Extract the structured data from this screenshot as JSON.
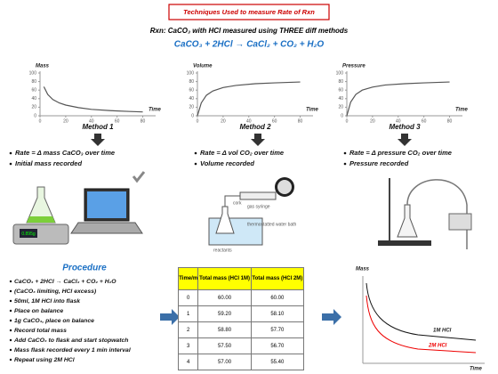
{
  "header": {
    "title": "Techniques Used to measure Rate of Rxn",
    "reaction": "Rxn: CaCO₃ with HCl measured using THREE diff methods",
    "equation": "CaCO₃ + 2HCl → CaCl₂ + CO₂ + H₂O"
  },
  "graphs": [
    {
      "type": "line",
      "ylabel": "Mass",
      "xlabel": "Time",
      "caption": "Method 1",
      "x": [
        3,
        6,
        10,
        15,
        20,
        30,
        40,
        55,
        70,
        80
      ],
      "values": [
        68,
        50,
        38,
        30,
        25,
        19,
        15,
        12,
        10,
        9
      ],
      "xlim": [
        0,
        90
      ],
      "ylim": [
        0,
        100
      ],
      "xticks": [
        0,
        20,
        40,
        60,
        80
      ],
      "yticks": [
        0,
        20,
        40,
        60,
        80,
        100
      ],
      "color": "#555555"
    },
    {
      "type": "line",
      "ylabel": "Volume",
      "xlabel": "Time",
      "caption": "Method 2",
      "x": [
        0,
        3,
        7,
        12,
        20,
        30,
        45,
        60,
        80
      ],
      "values": [
        0,
        30,
        48,
        58,
        66,
        71,
        75,
        77,
        79
      ],
      "xlim": [
        0,
        90
      ],
      "ylim": [
        0,
        100
      ],
      "xticks": [
        0,
        20,
        40,
        60,
        80
      ],
      "yticks": [
        0,
        20,
        40,
        60,
        80,
        100
      ],
      "color": "#555555"
    },
    {
      "type": "line",
      "ylabel": "Pressure",
      "xlabel": "Time",
      "caption": "Method 3",
      "x": [
        0,
        3,
        7,
        12,
        20,
        30,
        45,
        60,
        80
      ],
      "values": [
        0,
        32,
        50,
        60,
        67,
        72,
        75,
        77,
        79
      ],
      "xlim": [
        0,
        90
      ],
      "ylim": [
        0,
        100
      ],
      "xticks": [
        0,
        20,
        40,
        60,
        80
      ],
      "yticks": [
        0,
        20,
        40,
        60,
        80,
        100
      ],
      "color": "#555555"
    }
  ],
  "methods": [
    {
      "bullets": [
        "Rate = Δ mass CaCO₃ over time",
        "Initial mass recorded"
      ],
      "display": "0.895g"
    },
    {
      "bullets": [
        "Rate = Δ vol CO₂ over time",
        "Volume  recorded"
      ],
      "labels": [
        "cork",
        "gas syringe",
        "thermostatted water bath",
        "reactants"
      ]
    },
    {
      "bullets": [
        "Rate = Δ pressure CO₂ over time",
        "Pressure  recorded"
      ]
    }
  ],
  "procedure": {
    "title": "Procedure",
    "items": [
      "CaCO₃ + 2HCl → CaCl₂ + CO₂ + H₂O",
      "(CaCO₃ limiting, HCl excess)",
      "50ml, 1M HCl into flask",
      "Place on balance",
      "1g CaCO₃, place on balance",
      "Record total mass",
      "Add CaCO₃ to flask and start stopwatch",
      "Mass flask recorded every 1 min interval",
      "Repeat using 2M HCl"
    ]
  },
  "table": {
    "headers": [
      "Time/m",
      "Total mass (HCl 1M)",
      "Total mass (HCl 2M)"
    ],
    "rows": [
      [
        "0",
        "60.00",
        "60.00"
      ],
      [
        "1",
        "59.20",
        "58.10"
      ],
      [
        "2",
        "58.80",
        "57.70"
      ],
      [
        "3",
        "57.50",
        "56.70"
      ],
      [
        "4",
        "57.00",
        "55.40"
      ]
    ]
  },
  "result_graph": {
    "ylabel": "Mass",
    "xlabel": "Time",
    "series": [
      "1M HCl",
      "2M HCl"
    ]
  }
}
